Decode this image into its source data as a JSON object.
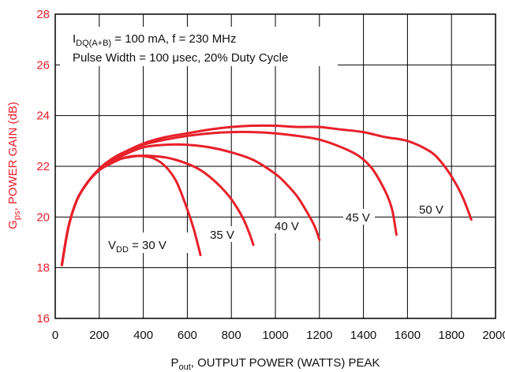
{
  "chart_data": {
    "type": "line",
    "xlabel": {
      "main": "P",
      "sub": "out",
      "rest": ", OUTPUT POWER (WATTS) PEAK"
    },
    "ylabel": {
      "main": "G",
      "sub": "ps",
      "rest": ", POWER GAIN (dB)"
    },
    "xlim": [
      0,
      2000
    ],
    "ylim": [
      16,
      28
    ],
    "x_ticks": [
      0,
      200,
      400,
      600,
      800,
      1000,
      1200,
      1400,
      1600,
      1800,
      2000
    ],
    "y_ticks": [
      16,
      18,
      20,
      22,
      24,
      26,
      28
    ],
    "grid": true,
    "annotation": {
      "line1": {
        "main": "I",
        "sub": "DQ(A+B)",
        "rest": " = 100 mA, f = 230 MHz"
      },
      "line2": "Pulse Width = 100 μsec, 20% Duty Cycle"
    },
    "series": [
      {
        "name": "V_DD = 30 V",
        "label": {
          "main": "V",
          "sub": "DD",
          "rest": " = 30 V"
        },
        "x": [
          30,
          60,
          100,
          150,
          200,
          250,
          300,
          350,
          400,
          450,
          500,
          550,
          600,
          630,
          660
        ],
        "y": [
          18.1,
          19.6,
          20.7,
          21.4,
          21.85,
          22.1,
          22.3,
          22.4,
          22.4,
          22.3,
          22.0,
          21.4,
          20.3,
          19.5,
          18.5
        ]
      },
      {
        "name": "35 V",
        "label": {
          "main": "35 V"
        },
        "x": [
          30,
          60,
          100,
          150,
          200,
          250,
          300,
          350,
          400,
          450,
          500,
          550,
          600,
          650,
          700,
          750,
          800,
          850,
          880,
          900
        ],
        "y": [
          18.1,
          19.6,
          20.7,
          21.4,
          21.85,
          22.1,
          22.3,
          22.38,
          22.42,
          22.4,
          22.35,
          22.25,
          22.1,
          21.9,
          21.6,
          21.2,
          20.7,
          20.0,
          19.4,
          18.9
        ]
      },
      {
        "name": "40 V",
        "label": {
          "main": "40 V"
        },
        "x": [
          30,
          60,
          100,
          150,
          200,
          250,
          300,
          400,
          500,
          600,
          700,
          800,
          900,
          1000,
          1050,
          1100,
          1150,
          1180,
          1200
        ],
        "y": [
          18.1,
          19.6,
          20.7,
          21.4,
          21.85,
          22.15,
          22.4,
          22.75,
          22.85,
          22.85,
          22.75,
          22.55,
          22.25,
          21.7,
          21.3,
          20.8,
          20.1,
          19.6,
          19.1
        ]
      },
      {
        "name": "45 V",
        "label": {
          "main": "45 V"
        },
        "x": [
          30,
          60,
          100,
          150,
          200,
          250,
          300,
          400,
          500,
          600,
          700,
          800,
          900,
          1000,
          1100,
          1200,
          1300,
          1380,
          1440,
          1500,
          1530,
          1550
        ],
        "y": [
          18.1,
          19.6,
          20.7,
          21.4,
          21.9,
          22.25,
          22.5,
          22.85,
          23.05,
          23.2,
          23.3,
          23.35,
          23.35,
          23.3,
          23.2,
          23.05,
          22.75,
          22.4,
          21.9,
          21.0,
          20.3,
          19.3
        ]
      },
      {
        "name": "50 V",
        "label": {
          "main": "50 V"
        },
        "x": [
          30,
          60,
          100,
          150,
          200,
          250,
          300,
          400,
          500,
          600,
          700,
          800,
          900,
          1000,
          1100,
          1200,
          1300,
          1400,
          1500,
          1600,
          1700,
          1750,
          1800,
          1850,
          1890
        ],
        "y": [
          18.1,
          19.6,
          20.7,
          21.4,
          21.9,
          22.25,
          22.5,
          22.9,
          23.15,
          23.3,
          23.45,
          23.55,
          23.6,
          23.6,
          23.55,
          23.55,
          23.45,
          23.35,
          23.15,
          23.0,
          22.6,
          22.2,
          21.6,
          20.8,
          19.9
        ]
      }
    ],
    "colors": {
      "curve": "#e8202a",
      "axis_label": "#e8202a",
      "grid": "#000000",
      "text": "#111111"
    }
  }
}
